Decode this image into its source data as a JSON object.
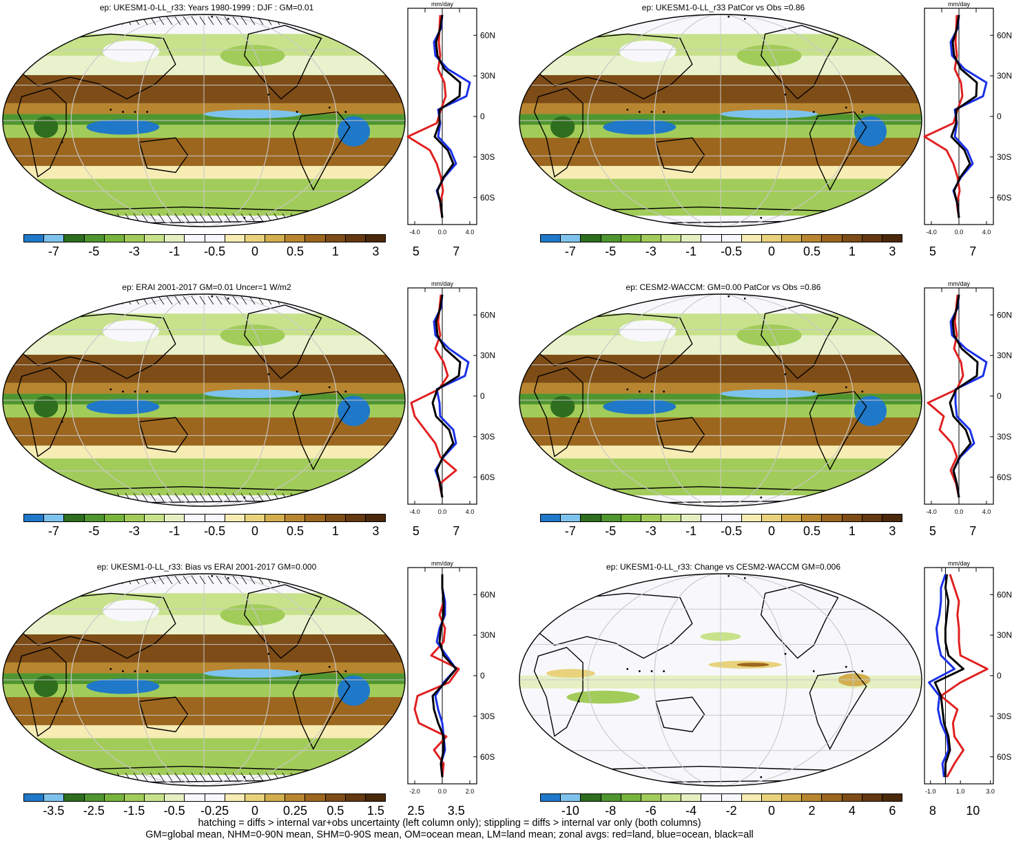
{
  "colors": {
    "palette10": [
      "#1f78c8",
      "#7ec3ee",
      "#2e6e1e",
      "#4f9630",
      "#78b43c",
      "#a2cc5a",
      "#c8e28c",
      "#e4f0c2",
      "#f8f8fc",
      "#f8f8fc",
      "#f6ecb4",
      "#e8d27c",
      "#d2ae4e",
      "#b88630",
      "#9c661e",
      "#7e4c16",
      "#643810",
      "#4a280c"
    ],
    "land": "#e02020",
    "ocean": "#1a30e8",
    "all": "#000000"
  },
  "footer": {
    "line1": "hatching = diffs > internal var+obs uncertainty (left column only); stippling = diffs > internal var only (both columns)",
    "line2": "GM=global mean, NHM=0-90N mean, SHM=0-90S mean, OM=ocean mean, LM=land mean; zonal avgs: red=land, blue=ocean, black=all"
  },
  "panels": [
    {
      "title": "ep: UKESM1-0-LL_r33: Years 1980-1999 : DJF : GM=0.01",
      "cbar_labels": [
        "-7",
        "-5",
        "-3",
        "-1",
        "-0.5",
        "0",
        "0.5",
        "1",
        "3",
        "5",
        "7"
      ],
      "zonal": {
        "unit": "mm/day",
        "xticks": [
          "-4.0",
          "0.0",
          "4.0"
        ],
        "xlim": [
          -5,
          5
        ],
        "yticks": [
          "60N",
          "30N",
          "0",
          "30S",
          "60S"
        ],
        "ylim": [
          -80,
          80
        ]
      }
    },
    {
      "title": "ep: UKESM1-0-LL_r33 PatCor vs Obs =0.86",
      "cbar_labels": [
        "-7",
        "-5",
        "-3",
        "-1",
        "-0.5",
        "0",
        "0.5",
        "1",
        "3",
        "5",
        "7"
      ],
      "zonal": {
        "unit": "mm/day",
        "xticks": [
          "-4.0",
          "0.0",
          "4.0"
        ],
        "xlim": [
          -5,
          5
        ],
        "yticks": [
          "60N",
          "30N",
          "0",
          "30S",
          "60S"
        ],
        "ylim": [
          -80,
          80
        ]
      }
    },
    {
      "title": "ep: ERAI 2001-2017 GM=0.01 Uncer=1 W/m2",
      "cbar_labels": [
        "-7",
        "-5",
        "-3",
        "-1",
        "-0.5",
        "0",
        "0.5",
        "1",
        "3",
        "5",
        "7"
      ],
      "zonal": {
        "unit": "mm/day",
        "xticks": [
          "-4.0",
          "0.0",
          "4.0"
        ],
        "xlim": [
          -5,
          5
        ],
        "yticks": [
          "60N",
          "30N",
          "0",
          "30S",
          "60S"
        ],
        "ylim": [
          -80,
          80
        ]
      }
    },
    {
      "title": "ep: CESM2-WACCM: GM=0.00 PatCor vs Obs =0.86",
      "cbar_labels": [
        "-7",
        "-5",
        "-3",
        "-1",
        "-0.5",
        "0",
        "0.5",
        "1",
        "3",
        "5",
        "7"
      ],
      "zonal": {
        "unit": "mm/day",
        "xticks": [
          "-4.0",
          "0.0",
          "4.0"
        ],
        "xlim": [
          -5,
          5
        ],
        "yticks": [
          "60N",
          "30N",
          "0",
          "30S",
          "60S"
        ],
        "ylim": [
          -80,
          80
        ]
      }
    },
    {
      "title": "ep: UKESM1-0-LL_r33: Bias vs ERAI 2001-2017 GM=0.000",
      "cbar_labels": [
        "-3.5",
        "-2.5",
        "-1.5",
        "-0.5",
        "-0.25",
        "0",
        "0.25",
        "0.5",
        "1.5",
        "2.5",
        "3.5"
      ],
      "zonal": {
        "unit": "mm/day",
        "xticks": [
          "-2.0",
          "0.0",
          "2.0"
        ],
        "xlim": [
          -2.5,
          2.5
        ],
        "yticks": [
          "60N",
          "30N",
          "0",
          "30S",
          "60S"
        ],
        "ylim": [
          -80,
          80
        ]
      }
    },
    {
      "title": "ep: UKESM1-0-LL_r33: Change vs CESM2-WACCM GM=0.006",
      "cbar_labels": [
        "-10",
        "-8",
        "-6",
        "-4",
        "-2",
        "0",
        "2",
        "4",
        "6",
        "8",
        "10"
      ],
      "zonal": {
        "unit": "mm/day",
        "xticks": [
          "-1.0",
          "1.0",
          "3.0"
        ],
        "xlim": [
          -1.4,
          3.2
        ],
        "yticks": [
          "60N",
          "30N",
          "0",
          "30S",
          "60S"
        ],
        "ylim": [
          -80,
          80
        ]
      }
    }
  ],
  "chart_data": [
    {
      "type": "line",
      "title": "ep: UKESM1-0-LL_r33: Years 1980-1999 : DJF : GM=0.01",
      "xlabel": "mm/day",
      "lat": [
        -75,
        -65,
        -55,
        -45,
        -35,
        -25,
        -15,
        -5,
        5,
        15,
        25,
        35,
        45,
        55,
        65,
        75
      ],
      "series": [
        {
          "name": "land",
          "values": [
            0.0,
            -0.3,
            0.1,
            -0.2,
            -0.8,
            -1.8,
            -5.0,
            -0.8,
            -0.2,
            0.5,
            0.3,
            -0.6,
            -0.3,
            -0.5,
            -0.4,
            -0.3
          ]
        },
        {
          "name": "ocean",
          "values": [
            0.0,
            -0.2,
            -0.8,
            0.3,
            2.0,
            1.2,
            -0.6,
            -0.3,
            -0.6,
            3.5,
            4.0,
            0.8,
            -1.0,
            -1.2,
            -0.2,
            0.0
          ]
        },
        {
          "name": "all",
          "values": [
            0.0,
            -0.2,
            -0.7,
            0.2,
            1.6,
            0.8,
            -1.1,
            -0.4,
            -0.4,
            2.5,
            2.6,
            0.3,
            -0.7,
            -0.9,
            -0.3,
            0.0
          ]
        }
      ]
    },
    {
      "type": "line",
      "title": "ep: UKESM1-0-LL_r33 PatCor vs Obs =0.86",
      "xlabel": "mm/day",
      "lat": [
        -75,
        -65,
        -55,
        -45,
        -35,
        -25,
        -15,
        -5,
        5,
        15,
        25,
        35,
        45,
        55,
        65,
        75
      ],
      "series": [
        {
          "name": "land",
          "values": [
            0.0,
            -0.3,
            0.1,
            -0.2,
            -0.8,
            -1.8,
            -5.0,
            -0.8,
            -0.2,
            0.5,
            0.3,
            -0.6,
            -0.3,
            -0.5,
            -0.4,
            -0.3
          ]
        },
        {
          "name": "ocean",
          "values": [
            0.0,
            -0.2,
            -0.8,
            0.3,
            2.0,
            1.2,
            -0.6,
            -0.3,
            -0.6,
            3.5,
            4.0,
            0.8,
            -1.0,
            -1.2,
            -0.2,
            0.0
          ]
        },
        {
          "name": "all",
          "values": [
            0.0,
            -0.2,
            -0.7,
            0.2,
            1.6,
            0.8,
            -1.1,
            -0.4,
            -0.4,
            2.5,
            2.6,
            0.3,
            -0.7,
            -0.9,
            -0.3,
            0.0
          ]
        }
      ]
    },
    {
      "type": "line",
      "title": "ep: ERAI 2001-2017 GM=0.01 Uncer=1 W/m2",
      "xlabel": "mm/day",
      "lat": [
        -75,
        -65,
        -55,
        -45,
        -35,
        -25,
        -15,
        -5,
        5,
        15,
        25,
        35,
        45,
        55,
        65,
        75
      ],
      "series": [
        {
          "name": "land",
          "values": [
            0.0,
            -0.4,
            2.0,
            -0.3,
            -1.0,
            -2.5,
            -4.0,
            -4.5,
            -0.5,
            0.8,
            0.2,
            -1.0,
            -0.3,
            -0.6,
            -0.4,
            -0.2
          ]
        },
        {
          "name": "ocean",
          "values": [
            0.0,
            -0.3,
            -1.0,
            0.2,
            2.0,
            1.6,
            -0.3,
            -0.4,
            -0.8,
            3.3,
            3.8,
            1.0,
            -1.0,
            -1.2,
            -0.2,
            0.0
          ]
        },
        {
          "name": "all",
          "values": [
            0.0,
            -0.3,
            -0.8,
            0.1,
            1.6,
            1.0,
            -0.9,
            -1.4,
            -0.7,
            2.4,
            2.6,
            0.4,
            -0.7,
            -0.9,
            -0.3,
            0.0
          ]
        }
      ]
    },
    {
      "type": "line",
      "title": "ep: CESM2-WACCM: GM=0.00 PatCor vs Obs =0.86",
      "xlabel": "mm/day",
      "lat": [
        -75,
        -65,
        -55,
        -45,
        -35,
        -25,
        -15,
        -5,
        5,
        15,
        25,
        35,
        45,
        55,
        65,
        75
      ],
      "series": [
        {
          "name": "land",
          "values": [
            0.0,
            -0.4,
            -1.2,
            -0.3,
            -1.0,
            -2.8,
            -2.2,
            -4.5,
            -0.3,
            0.6,
            0.3,
            -0.7,
            -0.3,
            -0.6,
            -0.4,
            -0.2
          ]
        },
        {
          "name": "ocean",
          "values": [
            0.0,
            -0.3,
            -0.8,
            0.2,
            2.2,
            1.6,
            -0.3,
            -0.5,
            -0.5,
            3.5,
            4.0,
            1.0,
            -1.0,
            -1.2,
            -0.2,
            0.0
          ]
        },
        {
          "name": "all",
          "values": [
            0.0,
            -0.3,
            -0.8,
            0.1,
            1.7,
            1.0,
            -0.8,
            -1.3,
            -0.4,
            2.6,
            2.7,
            0.4,
            -0.7,
            -0.9,
            -0.3,
            0.0
          ]
        }
      ]
    },
    {
      "type": "line",
      "title": "ep: UKESM1-0-LL_r33: Bias vs ERAI 2001-2017 GM=0.000",
      "xlabel": "mm/day",
      "lat": [
        -75,
        -65,
        -55,
        -45,
        -35,
        -25,
        -15,
        -5,
        5,
        15,
        25,
        35,
        45,
        55,
        65,
        75
      ],
      "series": [
        {
          "name": "land",
          "values": [
            0.0,
            0.1,
            -0.6,
            0.3,
            -1.7,
            -2.0,
            -1.8,
            0.5,
            1.2,
            -0.8,
            0.1,
            0.2,
            -0.2,
            0.1,
            0.0,
            0.0
          ]
        },
        {
          "name": "ocean",
          "values": [
            0.0,
            -0.1,
            0.2,
            0.1,
            0.0,
            -0.3,
            -0.5,
            0.1,
            1.0,
            0.3,
            -0.4,
            -0.2,
            0.2,
            0.2,
            0.0,
            0.0
          ]
        },
        {
          "name": "all",
          "values": [
            0.0,
            -0.1,
            0.1,
            0.1,
            -0.3,
            -0.6,
            -0.7,
            0.2,
            1.0,
            0.1,
            -0.2,
            -0.1,
            0.1,
            0.1,
            0.0,
            0.0
          ]
        }
      ]
    },
    {
      "type": "line",
      "title": "ep: UKESM1-0-LL_r33: Change vs CESM2-WACCM GM=0.006",
      "xlabel": "mm/day",
      "lat": [
        -75,
        -65,
        -55,
        -45,
        -35,
        -25,
        -15,
        -5,
        5,
        15,
        25,
        35,
        45,
        55,
        65,
        75
      ],
      "series": [
        {
          "name": "land",
          "values": [
            0.1,
            0.6,
            1.2,
            0.6,
            0.5,
            0.8,
            -0.3,
            1.0,
            2.8,
            1.0,
            0.9,
            0.9,
            0.8,
            0.9,
            0.6,
            0.3
          ]
        },
        {
          "name": "ocean",
          "values": [
            -0.1,
            -0.2,
            0.2,
            0.1,
            -0.3,
            -0.5,
            -0.4,
            -1.1,
            0.6,
            -0.3,
            -0.5,
            -0.6,
            -0.4,
            -0.3,
            -0.3,
            0.0
          ]
        },
        {
          "name": "all",
          "values": [
            0.0,
            0.0,
            0.3,
            0.2,
            -0.1,
            -0.2,
            -0.3,
            -0.7,
            1.2,
            0.2,
            0.0,
            0.0,
            0.1,
            0.2,
            0.0,
            0.1
          ]
        }
      ]
    }
  ]
}
